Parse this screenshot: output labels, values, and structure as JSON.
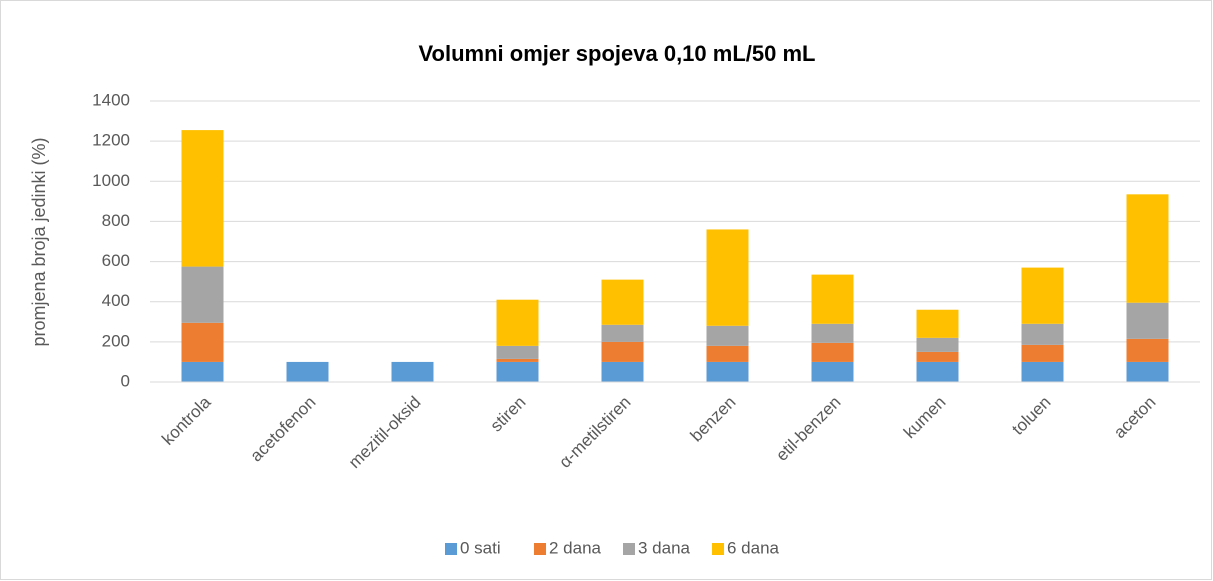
{
  "chart_data": {
    "type": "stacked_bar",
    "title": "Volumni omjer spojeva 0,10 mL/50 mL",
    "y_label": "promjena broja jedinki (%)",
    "categories": [
      "kontrola",
      "acetofenon",
      "mezitil-oksid",
      "stiren",
      "α-metilstiren",
      "benzen",
      "etil-benzen",
      "kumen",
      "toluen",
      "aceton"
    ],
    "series": [
      {
        "name": "0 sati",
        "color": "#5b9bd5",
        "values": [
          100,
          100,
          100,
          100,
          100,
          100,
          100,
          100,
          100,
          100
        ]
      },
      {
        "name": "2 dana",
        "color": "#ed7d31",
        "values": [
          195,
          0,
          0,
          15,
          100,
          80,
          95,
          50,
          85,
          115
        ]
      },
      {
        "name": "3 dana",
        "color": "#a5a5a5",
        "values": [
          280,
          0,
          0,
          65,
          85,
          100,
          95,
          70,
          105,
          180
        ]
      },
      {
        "name": "6 dana",
        "color": "#ffc000",
        "values": [
          680,
          0,
          0,
          230,
          225,
          480,
          245,
          140,
          280,
          540
        ]
      }
    ],
    "ylim": [
      0,
      1400
    ],
    "yticks": [
      0,
      200,
      400,
      600,
      800,
      1000,
      1200,
      1400
    ],
    "grid": true,
    "legend": "bottom"
  }
}
